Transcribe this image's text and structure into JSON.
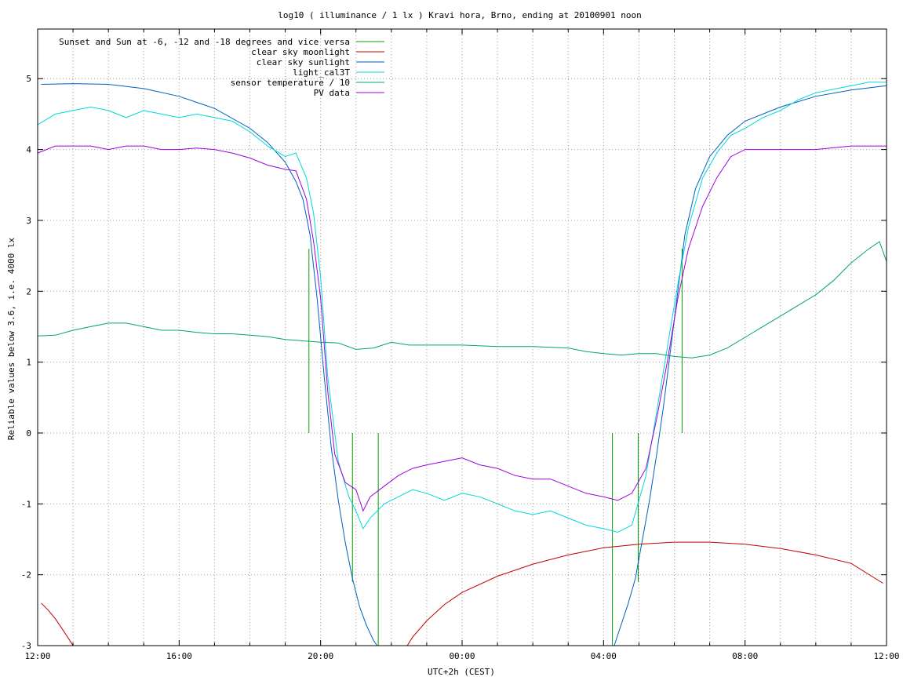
{
  "chart_data": {
    "type": "line",
    "title": "log10 ( illuminance / 1 lx ) Kravi hora, Brno, ending at 20100901 noon",
    "xlabel": "UTC+2h (CEST)",
    "ylabel": "Reliable values below 3.6, i.e. 4000 lx",
    "xlim": [
      0,
      24
    ],
    "ylim": [
      -3,
      5.7
    ],
    "grid": true,
    "legend_position": "top-left",
    "x_ticks": [
      {
        "v": 0,
        "label": "12:00"
      },
      {
        "v": 4,
        "label": "16:00"
      },
      {
        "v": 8,
        "label": "20:00"
      },
      {
        "v": 12,
        "label": "00:00"
      },
      {
        "v": 16,
        "label": "04:00"
      },
      {
        "v": 20,
        "label": "08:00"
      },
      {
        "v": 24,
        "label": "12:00"
      }
    ],
    "x_minor_step": 1,
    "y_ticks": [
      -3,
      -2,
      -1,
      0,
      1,
      2,
      3,
      4,
      5
    ],
    "series": [
      {
        "name": "Sunset and Sun at -6, -12 and -18 degrees and vice versa",
        "color": "#00a000",
        "kind": "impulses",
        "impulses": [
          {
            "x": 7.67,
            "from": 0,
            "to": 2.6
          },
          {
            "x": 8.9,
            "from": 0,
            "to": -2.1
          },
          {
            "x": 9.63,
            "from": 0,
            "to": -3.0
          },
          {
            "x": 16.25,
            "from": 0,
            "to": -3.0
          },
          {
            "x": 16.98,
            "from": 0,
            "to": -2.1
          },
          {
            "x": 18.22,
            "from": 0,
            "to": 2.6
          }
        ]
      },
      {
        "name": "clear sky moonlight",
        "color": "#c00000",
        "kind": "line",
        "points": [
          [
            0.1,
            -2.4
          ],
          [
            0.3,
            -2.5
          ],
          [
            0.5,
            -2.62
          ],
          [
            0.7,
            -2.77
          ],
          [
            0.9,
            -2.92
          ],
          [
            1.0,
            -3.0
          ],
          [
            10.45,
            -3.0
          ],
          [
            10.6,
            -2.88
          ],
          [
            11,
            -2.65
          ],
          [
            11.5,
            -2.42
          ],
          [
            12,
            -2.25
          ],
          [
            13,
            -2.02
          ],
          [
            14,
            -1.85
          ],
          [
            15,
            -1.72
          ],
          [
            16,
            -1.62
          ],
          [
            17,
            -1.57
          ],
          [
            18,
            -1.54
          ],
          [
            19,
            -1.54
          ],
          [
            20,
            -1.57
          ],
          [
            21,
            -1.63
          ],
          [
            22,
            -1.72
          ],
          [
            23,
            -1.84
          ],
          [
            23.9,
            -2.12
          ]
        ]
      },
      {
        "name": "clear sky sunlight",
        "color": "#0060c0",
        "kind": "line",
        "points": [
          [
            0.1,
            4.92
          ],
          [
            1,
            4.93
          ],
          [
            2,
            4.92
          ],
          [
            3,
            4.86
          ],
          [
            4,
            4.75
          ],
          [
            5,
            4.58
          ],
          [
            6,
            4.3
          ],
          [
            6.5,
            4.1
          ],
          [
            7,
            3.82
          ],
          [
            7.3,
            3.55
          ],
          [
            7.5,
            3.3
          ],
          [
            7.7,
            2.8
          ],
          [
            7.9,
            1.9
          ],
          [
            8.1,
            0.8
          ],
          [
            8.3,
            -0.2
          ],
          [
            8.5,
            -0.95
          ],
          [
            8.7,
            -1.55
          ],
          [
            8.9,
            -2.05
          ],
          [
            9.1,
            -2.45
          ],
          [
            9.3,
            -2.72
          ],
          [
            9.5,
            -2.93
          ],
          [
            9.6,
            -3.0
          ],
          [
            16.3,
            -3.0
          ],
          [
            16.5,
            -2.7
          ],
          [
            16.7,
            -2.4
          ],
          [
            16.9,
            -2.05
          ],
          [
            17.1,
            -1.5
          ],
          [
            17.3,
            -0.95
          ],
          [
            17.5,
            -0.3
          ],
          [
            17.7,
            0.4
          ],
          [
            17.9,
            1.2
          ],
          [
            18.1,
            2.0
          ],
          [
            18.3,
            2.8
          ],
          [
            18.6,
            3.45
          ],
          [
            19,
            3.9
          ],
          [
            19.5,
            4.2
          ],
          [
            20,
            4.4
          ],
          [
            21,
            4.6
          ],
          [
            22,
            4.75
          ],
          [
            23,
            4.84
          ],
          [
            24,
            4.9
          ]
        ]
      },
      {
        "name": "light_cal3T",
        "color": "#00d8d8",
        "kind": "line",
        "points": [
          [
            0,
            4.35
          ],
          [
            0.5,
            4.5
          ],
          [
            1,
            4.55
          ],
          [
            1.5,
            4.6
          ],
          [
            2,
            4.55
          ],
          [
            2.5,
            4.45
          ],
          [
            3,
            4.55
          ],
          [
            3.5,
            4.5
          ],
          [
            4,
            4.45
          ],
          [
            4.5,
            4.5
          ],
          [
            5,
            4.45
          ],
          [
            5.5,
            4.4
          ],
          [
            6,
            4.25
          ],
          [
            6.5,
            4.05
          ],
          [
            7,
            3.9
          ],
          [
            7.3,
            3.95
          ],
          [
            7.6,
            3.6
          ],
          [
            7.8,
            3.1
          ],
          [
            8.0,
            2.2
          ],
          [
            8.2,
            0.8
          ],
          [
            8.5,
            -0.4
          ],
          [
            8.8,
            -0.9
          ],
          [
            9.0,
            -1.1
          ],
          [
            9.2,
            -1.35
          ],
          [
            9.4,
            -1.2
          ],
          [
            9.8,
            -1.0
          ],
          [
            10.2,
            -0.9
          ],
          [
            10.6,
            -0.8
          ],
          [
            11,
            -0.85
          ],
          [
            11.5,
            -0.95
          ],
          [
            12,
            -0.85
          ],
          [
            12.5,
            -0.9
          ],
          [
            13,
            -1.0
          ],
          [
            13.5,
            -1.1
          ],
          [
            14,
            -1.15
          ],
          [
            14.5,
            -1.1
          ],
          [
            15,
            -1.2
          ],
          [
            15.5,
            -1.3
          ],
          [
            16,
            -1.35
          ],
          [
            16.4,
            -1.4
          ],
          [
            16.8,
            -1.3
          ],
          [
            17.2,
            -0.6
          ],
          [
            17.5,
            0.3
          ],
          [
            17.8,
            1.2
          ],
          [
            18.1,
            2.1
          ],
          [
            18.4,
            2.9
          ],
          [
            18.8,
            3.6
          ],
          [
            19.2,
            3.95
          ],
          [
            19.6,
            4.2
          ],
          [
            20,
            4.3
          ],
          [
            20.5,
            4.45
          ],
          [
            21,
            4.55
          ],
          [
            21.5,
            4.7
          ],
          [
            22,
            4.8
          ],
          [
            22.5,
            4.85
          ],
          [
            23,
            4.9
          ],
          [
            23.5,
            4.95
          ],
          [
            24,
            4.95
          ]
        ]
      },
      {
        "name": "sensor temperature / 10",
        "color": "#00a860",
        "kind": "line",
        "points": [
          [
            0,
            1.37
          ],
          [
            0.5,
            1.38
          ],
          [
            1,
            1.45
          ],
          [
            1.5,
            1.5
          ],
          [
            2,
            1.55
          ],
          [
            2.5,
            1.55
          ],
          [
            3,
            1.5
          ],
          [
            3.5,
            1.45
          ],
          [
            4,
            1.45
          ],
          [
            4.5,
            1.42
          ],
          [
            5,
            1.4
          ],
          [
            5.5,
            1.4
          ],
          [
            6,
            1.38
          ],
          [
            6.5,
            1.36
          ],
          [
            7,
            1.32
          ],
          [
            7.5,
            1.3
          ],
          [
            8,
            1.28
          ],
          [
            8.5,
            1.27
          ],
          [
            9,
            1.18
          ],
          [
            9.5,
            1.2
          ],
          [
            10,
            1.28
          ],
          [
            10.5,
            1.24
          ],
          [
            11,
            1.24
          ],
          [
            12,
            1.24
          ],
          [
            13,
            1.22
          ],
          [
            14,
            1.22
          ],
          [
            15,
            1.2
          ],
          [
            15.5,
            1.15
          ],
          [
            16,
            1.12
          ],
          [
            16.5,
            1.1
          ],
          [
            17,
            1.12
          ],
          [
            17.5,
            1.12
          ],
          [
            18,
            1.08
          ],
          [
            18.5,
            1.06
          ],
          [
            19,
            1.1
          ],
          [
            19.5,
            1.2
          ],
          [
            20,
            1.35
          ],
          [
            20.5,
            1.5
          ],
          [
            21,
            1.65
          ],
          [
            21.5,
            1.8
          ],
          [
            22,
            1.95
          ],
          [
            22.5,
            2.15
          ],
          [
            23,
            2.4
          ],
          [
            23.5,
            2.6
          ],
          [
            23.8,
            2.7
          ],
          [
            24,
            2.42
          ]
        ]
      },
      {
        "name": "PV data",
        "color": "#a000e0",
        "kind": "line",
        "points": [
          [
            0,
            3.95
          ],
          [
            0.5,
            4.05
          ],
          [
            1,
            4.05
          ],
          [
            1.5,
            4.05
          ],
          [
            2,
            4.0
          ],
          [
            2.5,
            4.05
          ],
          [
            3,
            4.05
          ],
          [
            3.5,
            4.0
          ],
          [
            4,
            4.0
          ],
          [
            4.5,
            4.02
          ],
          [
            5,
            4.0
          ],
          [
            5.5,
            3.95
          ],
          [
            6,
            3.88
          ],
          [
            6.5,
            3.78
          ],
          [
            7,
            3.72
          ],
          [
            7.3,
            3.7
          ],
          [
            7.6,
            3.3
          ],
          [
            7.8,
            2.7
          ],
          [
            8.0,
            1.9
          ],
          [
            8.2,
            0.6
          ],
          [
            8.4,
            -0.3
          ],
          [
            8.7,
            -0.7
          ],
          [
            9.0,
            -0.8
          ],
          [
            9.2,
            -1.1
          ],
          [
            9.4,
            -0.9
          ],
          [
            9.8,
            -0.75
          ],
          [
            10.2,
            -0.6
          ],
          [
            10.6,
            -0.5
          ],
          [
            11,
            -0.45
          ],
          [
            11.5,
            -0.4
          ],
          [
            12,
            -0.35
          ],
          [
            12.5,
            -0.45
          ],
          [
            13,
            -0.5
          ],
          [
            13.5,
            -0.6
          ],
          [
            14,
            -0.65
          ],
          [
            14.5,
            -0.65
          ],
          [
            15,
            -0.75
          ],
          [
            15.5,
            -0.85
          ],
          [
            16,
            -0.9
          ],
          [
            16.4,
            -0.95
          ],
          [
            16.8,
            -0.85
          ],
          [
            17.2,
            -0.5
          ],
          [
            17.5,
            0.2
          ],
          [
            17.8,
            1.0
          ],
          [
            18.1,
            1.9
          ],
          [
            18.4,
            2.6
          ],
          [
            18.8,
            3.2
          ],
          [
            19.2,
            3.6
          ],
          [
            19.6,
            3.9
          ],
          [
            20,
            4.0
          ],
          [
            21,
            4.0
          ],
          [
            22,
            4.0
          ],
          [
            23,
            4.05
          ],
          [
            24,
            4.05
          ]
        ]
      }
    ]
  }
}
